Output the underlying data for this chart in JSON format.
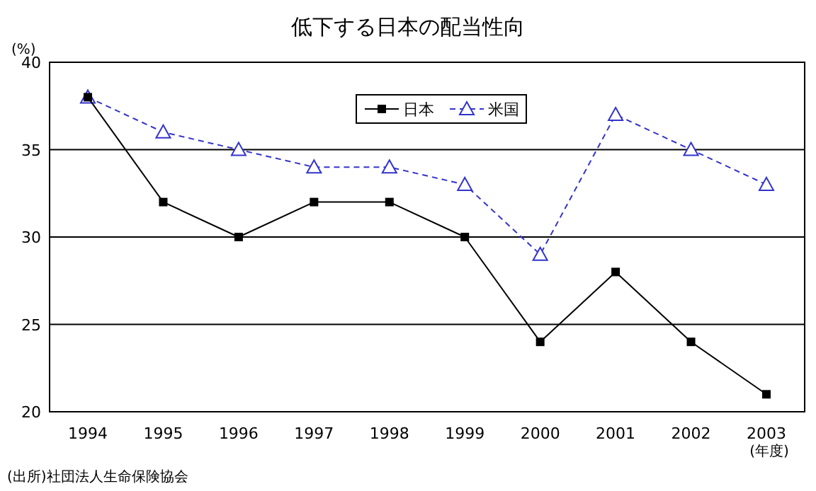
{
  "chart_data": {
    "type": "line",
    "title": "低下する日本の配当性向",
    "ylabel": "(%)",
    "xlabel": "(年度)",
    "categories": [
      "1994",
      "1995",
      "1996",
      "1997",
      "1998",
      "1999",
      "2000",
      "2001",
      "2002",
      "2003"
    ],
    "series": [
      {
        "name": "日本",
        "color": "#000000",
        "marker": "square",
        "line_style": "solid",
        "values": [
          38,
          32,
          30,
          32,
          32,
          30,
          24,
          28,
          24,
          21
        ]
      },
      {
        "name": "米国",
        "color": "#3333cc",
        "marker": "triangle",
        "line_style": "dashed",
        "values": [
          38,
          36,
          35,
          34,
          34,
          33,
          29,
          37,
          35,
          33
        ]
      }
    ],
    "ylim": [
      20,
      40
    ],
    "yticks": [
      20,
      25,
      30,
      35,
      40
    ],
    "grid": "y",
    "legend": "top",
    "annotations": [
      "(出所)社団法人生命保険協会"
    ]
  }
}
